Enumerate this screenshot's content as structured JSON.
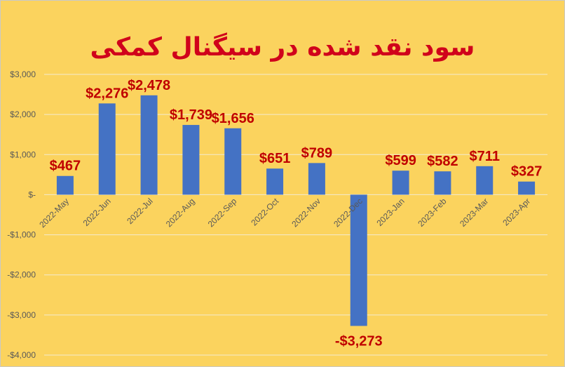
{
  "chart_data": {
    "type": "bar",
    "title": "سود نقد شده در سیگنال کمکی",
    "categories": [
      "2022-May",
      "2022-Jun",
      "2022-Jul",
      "2022-Aug",
      "2022-Sep",
      "2022-Oct",
      "2022-Nov",
      "2022-Dec",
      "2023-Jan",
      "2023-Feb",
      "2023-Mar",
      "2023-Apr"
    ],
    "values": [
      467,
      2276,
      2478,
      1739,
      1656,
      651,
      789,
      -3273,
      599,
      582,
      711,
      327
    ],
    "data_labels": [
      "$467",
      "$2,276",
      "$2,478",
      "$1,739",
      "$1,656",
      "$651",
      "$789",
      "-$3,273",
      "$599",
      "$582",
      "$711",
      "$327"
    ],
    "yticks": [
      3000,
      2000,
      1000,
      0,
      -1000,
      -2000,
      -3000,
      -4000
    ],
    "ytick_labels": [
      "$3,000",
      "$2,000",
      "$1,000",
      "$-",
      "-$1,000",
      "-$2,000",
      "-$3,000",
      "-$4,000"
    ],
    "ylim": [
      -4000,
      3000
    ],
    "xlabel": "",
    "ylabel": "",
    "grid": true,
    "colors": {
      "background": "#FBD35E",
      "bar": "#4472C4",
      "title": "#D0021B",
      "data_label": "#C00000",
      "tick_text": "#595959"
    }
  }
}
